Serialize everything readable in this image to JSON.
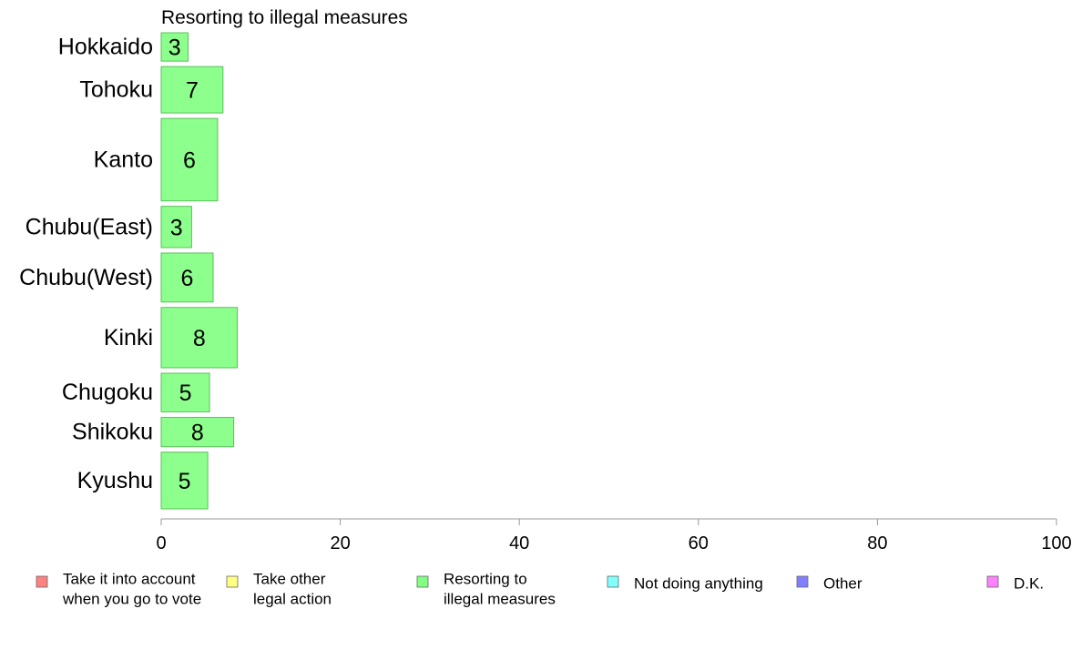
{
  "chart_data": {
    "type": "bar",
    "orientation": "horizontal",
    "title": "Resorting to illegal measures",
    "categories": [
      "Hokkaido",
      "Tohoku",
      "Kanto",
      "Chubu(East)",
      "Chubu(West)",
      "Kinki",
      "Chugoku",
      "Shikoku",
      "Kyushu"
    ],
    "values": [
      3,
      7,
      6,
      3,
      6,
      8,
      5,
      8,
      5
    ],
    "plotted_values": [
      3.0,
      6.9,
      6.3,
      3.4,
      5.8,
      8.5,
      5.4,
      8.1,
      5.2
    ],
    "relative_sample_sizes": [
      0.55,
      0.9,
      1.6,
      0.8,
      0.95,
      1.17,
      0.75,
      0.57,
      1.1
    ],
    "xlim": [
      0,
      100
    ],
    "xticks": [
      0,
      20,
      40,
      60,
      80,
      100
    ],
    "xlabel": "",
    "ylabel": "",
    "bar_color": "#8cff8c",
    "bar_edge_color": "#5cbf5c",
    "grid": false,
    "legend_position": "bottom",
    "legend": [
      {
        "line1": "Take it into account",
        "line2": "when you go to vote",
        "color": "#ff8080"
      },
      {
        "line1": "Take other",
        "line2": "legal action",
        "color": "#ffff80"
      },
      {
        "line1": "Resorting to",
        "line2": "illegal measures",
        "color": "#80ff80"
      },
      {
        "line1": "Not doing anything",
        "line2": "",
        "color": "#80ffff"
      },
      {
        "line1": "Other",
        "line2": "",
        "color": "#8080ff"
      },
      {
        "line1": "D.K.",
        "line2": "",
        "color": "#ff80ff"
      }
    ]
  }
}
